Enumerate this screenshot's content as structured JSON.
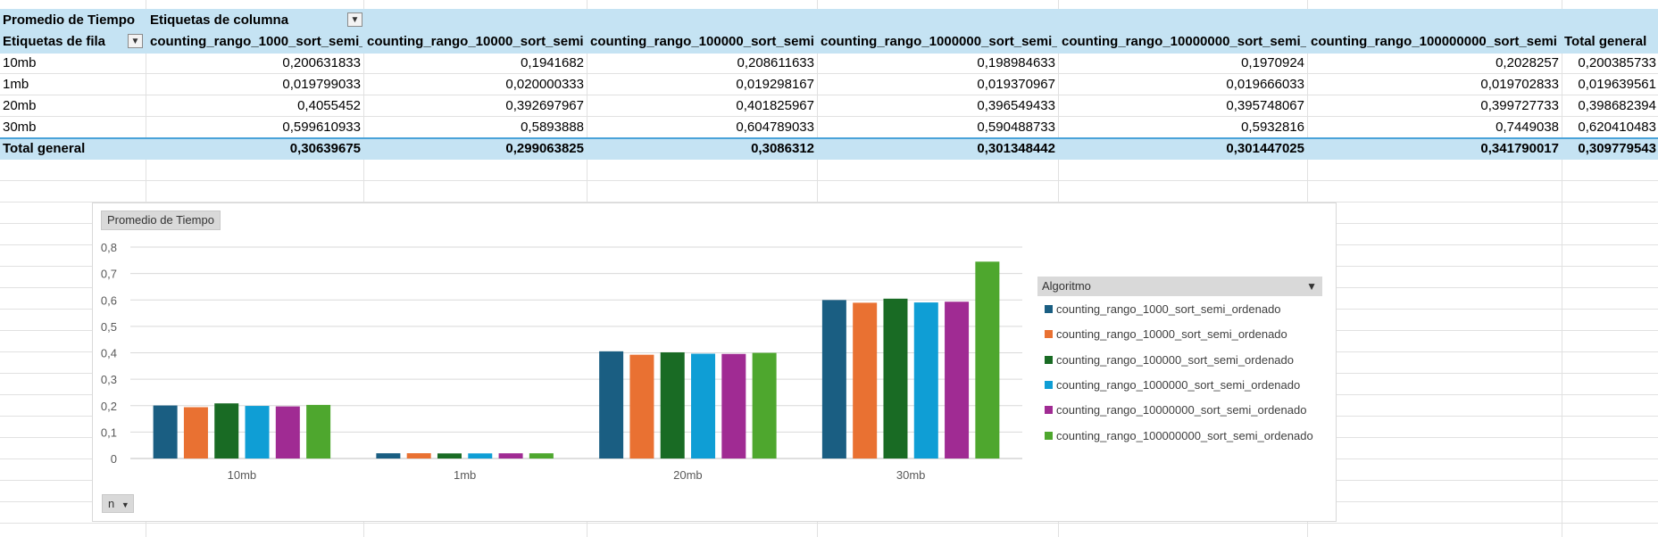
{
  "pivot": {
    "value_field": "Promedio de Tiempo",
    "column_labels": "Etiquetas de columna",
    "row_labels": "Etiquetas de fila",
    "columns": [
      "counting_rango_1000_sort_semi_",
      "counting_rango_10000_sort_semi",
      "counting_rango_100000_sort_semi",
      "counting_rango_1000000_sort_semi_",
      "counting_rango_10000000_sort_semi_",
      "counting_rango_100000000_sort_semi",
      "Total general"
    ],
    "rows": [
      {
        "label": "10mb",
        "values": [
          "0,200631833",
          "0,1941682",
          "0,208611633",
          "0,198984633",
          "0,1970924",
          "0,2028257",
          "0,200385733"
        ]
      },
      {
        "label": "1mb",
        "values": [
          "0,019799033",
          "0,020000333",
          "0,019298167",
          "0,019370967",
          "0,019666033",
          "0,019702833",
          "0,019639561"
        ]
      },
      {
        "label": "20mb",
        "values": [
          "0,4055452",
          "0,392697967",
          "0,401825967",
          "0,396549433",
          "0,395748067",
          "0,399727733",
          "0,398682394"
        ]
      },
      {
        "label": "30mb",
        "values": [
          "0,599610933",
          "0,5893888",
          "0,604789033",
          "0,590488733",
          "0,5932816",
          "0,7449038",
          "0,620410483"
        ]
      }
    ],
    "total": {
      "label": "Total general",
      "values": [
        "0,30639675",
        "0,299063825",
        "0,3086312",
        "0,301348442",
        "0,301447025",
        "0,341790017",
        "0,309779543"
      ]
    }
  },
  "chart": {
    "value_button": "Promedio de Tiempo",
    "axis_button": "n",
    "legend_title": "Algoritmo"
  },
  "chart_data": {
    "type": "bar",
    "categories": [
      "10mb",
      "1mb",
      "20mb",
      "30mb"
    ],
    "ylim": [
      0,
      0.8
    ],
    "yticks": [
      "0",
      "0,1",
      "0,2",
      "0,3",
      "0,4",
      "0,5",
      "0,6",
      "0,7",
      "0,8"
    ],
    "grid": true,
    "legend_position": "right",
    "series": [
      {
        "name": "counting_rango_1000_sort_semi_ordenado",
        "color": "#1a5e82",
        "values": [
          0.200631833,
          0.019799033,
          0.4055452,
          0.599610933
        ]
      },
      {
        "name": "counting_rango_10000_sort_semi_ordenado",
        "color": "#e97132",
        "values": [
          0.1941682,
          0.020000333,
          0.392697967,
          0.5893888
        ]
      },
      {
        "name": "counting_rango_100000_sort_semi_ordenado",
        "color": "#196b24",
        "values": [
          0.208611633,
          0.019298167,
          0.401825967,
          0.604789033
        ]
      },
      {
        "name": "counting_rango_1000000_sort_semi_ordenado",
        "color": "#0f9ed5",
        "values": [
          0.198984633,
          0.019370967,
          0.396549433,
          0.590488733
        ]
      },
      {
        "name": "counting_rango_10000000_sort_semi_ordenado",
        "color": "#a02b93",
        "values": [
          0.1970924,
          0.019666033,
          0.395748067,
          0.5932816
        ]
      },
      {
        "name": "counting_rango_100000000_sort_semi_ordenado",
        "color": "#4ea72e",
        "values": [
          0.2028257,
          0.019702833,
          0.399727733,
          0.7449038
        ]
      }
    ]
  }
}
